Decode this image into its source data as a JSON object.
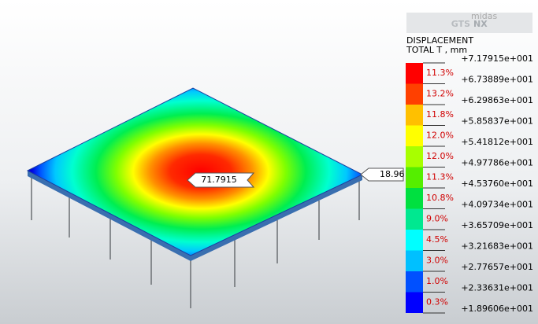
{
  "logo": {
    "brand": "midas",
    "product": "GTS",
    "suffix": "NX"
  },
  "legend": {
    "title": "DISPLACEMENT",
    "subtitle": "TOTAL T , mm",
    "levels": [
      "+7.17915e+001",
      "+6.73889e+001",
      "+6.29863e+001",
      "+5.85837e+001",
      "+5.41812e+001",
      "+4.97786e+001",
      "+4.53760e+001",
      "+4.09734e+001",
      "+3.65709e+001",
      "+3.21683e+001",
      "+2.77657e+001",
      "+2.33631e+001",
      "+1.89606e+001"
    ],
    "percents": [
      "11.3%",
      "13.2%",
      "11.8%",
      "12.0%",
      "12.0%",
      "11.3%",
      "10.8%",
      "9.0%",
      "4.5%",
      "3.0%",
      "1.0%",
      "0.3%"
    ]
  },
  "callouts": {
    "max": "71.7915",
    "min": "18.96"
  }
}
